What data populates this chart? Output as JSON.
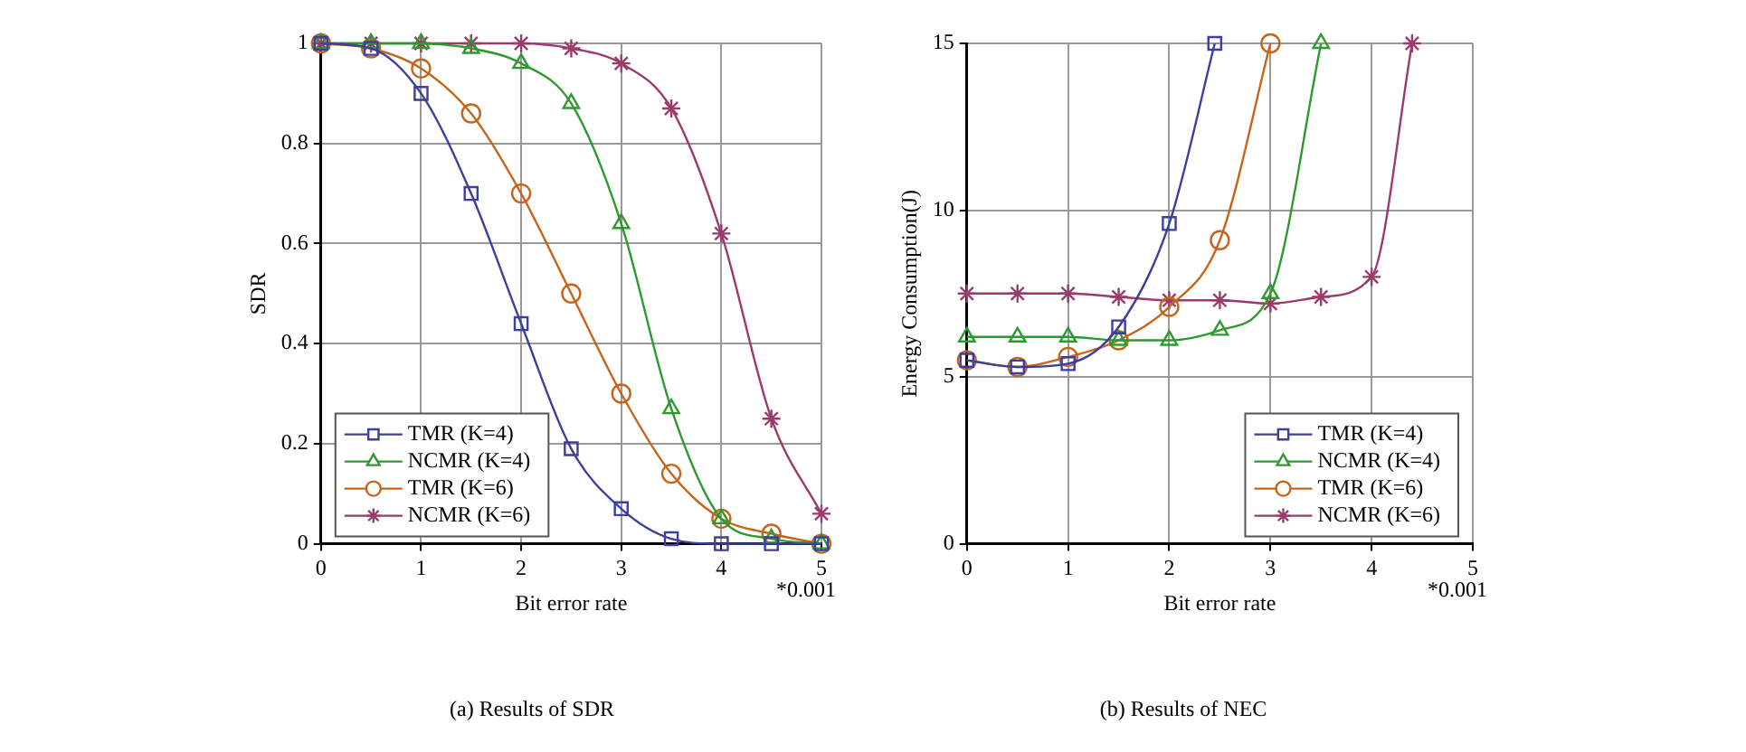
{
  "chart_data": [
    {
      "type": "line",
      "title": "(a) Results of SDR",
      "xlabel": "Bit error rate",
      "ylabel": "SDR",
      "annotations": [
        "*0.001"
      ],
      "xlim": [
        0,
        5
      ],
      "xticks": [
        0,
        1,
        2,
        3,
        4,
        5
      ],
      "ylim": [
        0,
        1
      ],
      "yticks": [
        0,
        0.2,
        0.4,
        0.6,
        0.8,
        1
      ],
      "grid": true,
      "legend": "bottom left",
      "line_style": "solid",
      "series": [
        {
          "name": "TMR (K=4)",
          "color": "#3c3f9c",
          "marker": "square",
          "x": [
            0,
            0.5,
            1,
            1.5,
            2,
            2.5,
            3,
            3.5,
            4,
            4.5,
            5
          ],
          "values": [
            1,
            0.99,
            0.9,
            0.7,
            0.44,
            0.19,
            0.07,
            0.01,
            0,
            0,
            0
          ]
        },
        {
          "name": "NCMR (K=4)",
          "color": "#2e9a2e",
          "marker": "triangle",
          "x": [
            0,
            0.5,
            1,
            1.5,
            2,
            2.5,
            3,
            3.5,
            4,
            4.5,
            5
          ],
          "values": [
            1,
            1,
            1,
            0.99,
            0.96,
            0.88,
            0.64,
            0.27,
            0.05,
            0.01,
            0
          ]
        },
        {
          "name": "TMR (K=6)",
          "color": "#c8641a",
          "marker": "circle",
          "x": [
            0,
            0.5,
            1,
            1.5,
            2,
            2.5,
            3,
            3.5,
            4,
            4.5,
            5
          ],
          "values": [
            1,
            0.99,
            0.95,
            0.86,
            0.7,
            0.5,
            0.3,
            0.14,
            0.05,
            0.02,
            0
          ]
        },
        {
          "name": "NCMR (K=6)",
          "color": "#9b3a6b",
          "marker": "cross",
          "x": [
            0,
            0.5,
            1,
            1.5,
            2,
            2.5,
            3,
            3.5,
            4,
            4.5,
            5
          ],
          "values": [
            1,
            1,
            1,
            1,
            1,
            0.99,
            0.96,
            0.87,
            0.62,
            0.25,
            0.06
          ]
        }
      ]
    },
    {
      "type": "line",
      "title": "(b) Results of NEC",
      "xlabel": "Bit error rate",
      "ylabel": "Energy Consumption(J)",
      "annotations": [
        "*0.001"
      ],
      "xlim": [
        0,
        5
      ],
      "xticks": [
        0,
        1,
        2,
        3,
        4,
        5
      ],
      "ylim": [
        0,
        15
      ],
      "yticks": [
        0,
        5,
        10,
        15
      ],
      "grid": true,
      "legend": "bottom right",
      "line_style": "solid",
      "series": [
        {
          "name": "TMR (K=4)",
          "color": "#3c3f9c",
          "marker": "square",
          "x": [
            0,
            0.5,
            1,
            1.5,
            2,
            2.45
          ],
          "values": [
            5.5,
            5.3,
            5.4,
            6.5,
            9.6,
            15
          ]
        },
        {
          "name": "NCMR (K=4)",
          "color": "#2e9a2e",
          "marker": "triangle",
          "x": [
            0,
            0.5,
            1,
            1.5,
            2,
            2.5,
            3,
            3.5
          ],
          "values": [
            6.2,
            6.2,
            6.2,
            6.1,
            6.1,
            6.4,
            7.5,
            15
          ]
        },
        {
          "name": "TMR (K=6)",
          "color": "#c8641a",
          "marker": "circle",
          "x": [
            0,
            0.5,
            1,
            1.5,
            2,
            2.5,
            3
          ],
          "values": [
            5.5,
            5.3,
            5.6,
            6.1,
            7.1,
            9.1,
            15
          ]
        },
        {
          "name": "NCMR (K=6)",
          "color": "#9b3a6b",
          "marker": "cross",
          "x": [
            0,
            0.5,
            1,
            1.5,
            2,
            2.5,
            3,
            3.5,
            4,
            4.4
          ],
          "values": [
            7.5,
            7.5,
            7.5,
            7.4,
            7.3,
            7.3,
            7.2,
            7.4,
            8.0,
            15
          ]
        }
      ]
    }
  ]
}
